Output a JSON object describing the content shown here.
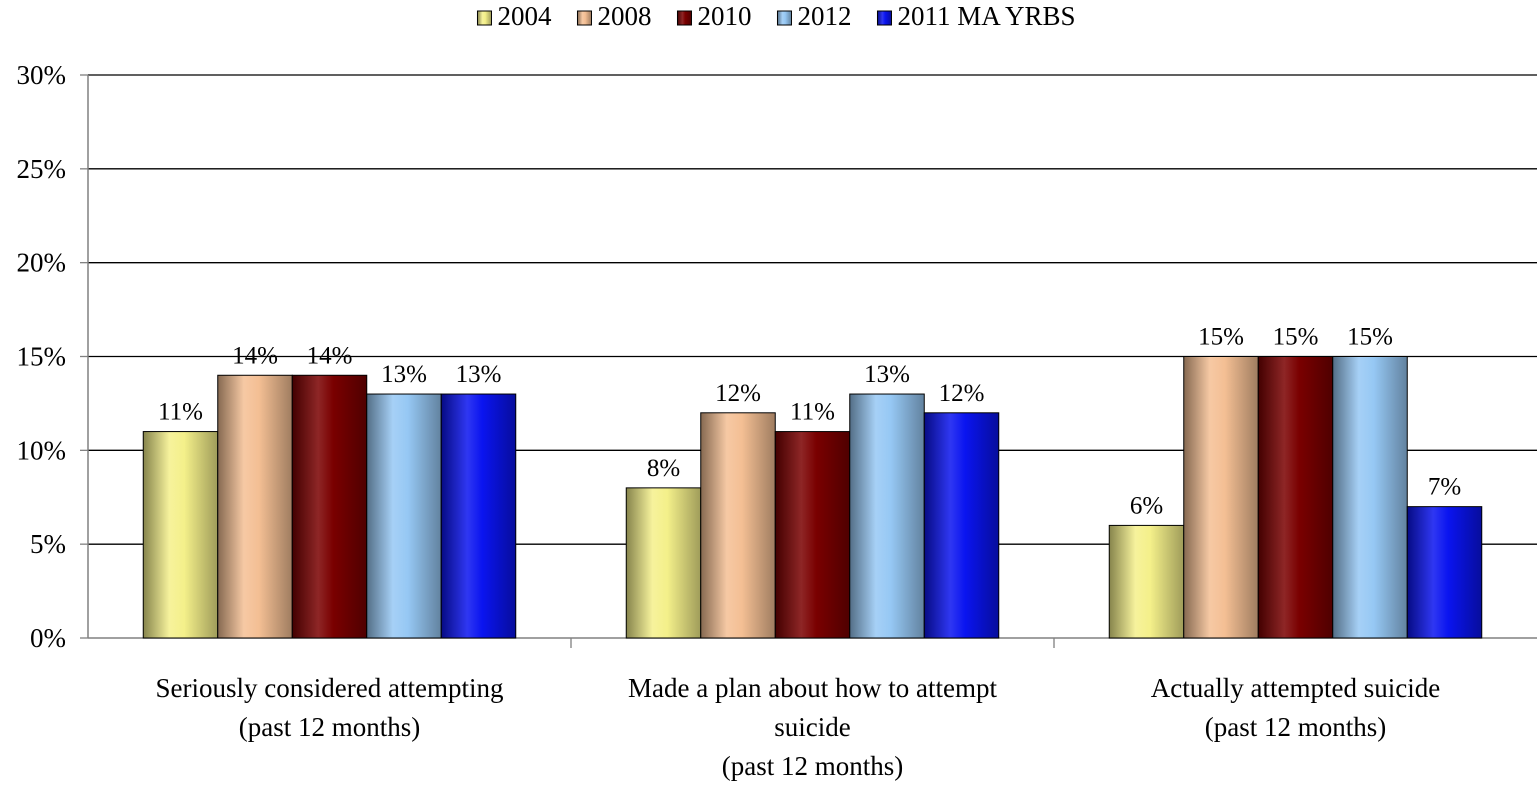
{
  "colors": {
    "2004": "#f4f08a",
    "2008": "#f4bf94",
    "2010": "#7a0000",
    "2012": "#96c8f4",
    "2011 MA YRBS": "#0a14f0",
    "gridline": "#000000",
    "axis": "#808080"
  },
  "chart_data": {
    "type": "bar",
    "title": "",
    "xlabel": "",
    "ylabel": "",
    "ylim": [
      0,
      30
    ],
    "y_ticks": [
      "0%",
      "5%",
      "10%",
      "15%",
      "20%",
      "25%",
      "30%"
    ],
    "grid": true,
    "legend_position": "top",
    "categories": [
      [
        "Seriously considered attempting",
        "(past 12 months)"
      ],
      [
        "Made a plan about how to attempt",
        "suicide",
        "(past 12 months)"
      ],
      [
        "Actually attempted suicide",
        "(past 12 months)"
      ]
    ],
    "series": [
      {
        "name": "2004",
        "values": [
          11,
          8,
          6
        ],
        "labels": [
          "11%",
          "8%",
          "6%"
        ]
      },
      {
        "name": "2008",
        "values": [
          14,
          12,
          15
        ],
        "labels": [
          "14%",
          "12%",
          "15%"
        ]
      },
      {
        "name": "2010",
        "values": [
          14,
          11,
          15
        ],
        "labels": [
          "14%",
          "11%",
          "15%"
        ]
      },
      {
        "name": "2012",
        "values": [
          13,
          13,
          15
        ],
        "labels": [
          "13%",
          "13%",
          "15%"
        ]
      },
      {
        "name": "2011 MA YRBS",
        "values": [
          13,
          12,
          7
        ],
        "labels": [
          "13%",
          "12%",
          "7%"
        ]
      }
    ]
  }
}
